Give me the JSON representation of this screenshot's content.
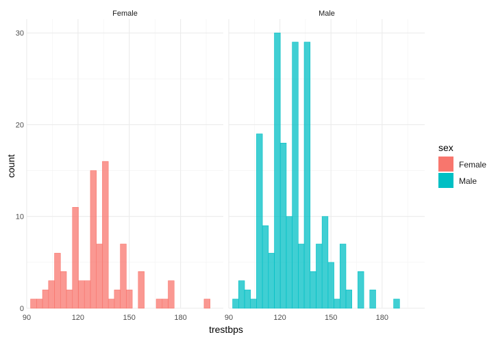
{
  "chart_data": {
    "type": "bar",
    "subtype": "faceted-histogram",
    "title": "",
    "xlabel": "trestbps",
    "ylabel": "count",
    "xlim": [
      90,
      205
    ],
    "ylim": [
      0,
      31.5
    ],
    "x_ticks": [
      90,
      120,
      150,
      180
    ],
    "y_ticks": [
      0,
      10,
      20,
      30
    ],
    "bin_width": 3.5,
    "grid": true,
    "theme": "minimal",
    "legend": {
      "title": "sex",
      "placement": "right",
      "entries": [
        {
          "label": "Female",
          "color": "#F8766D"
        },
        {
          "label": "Male",
          "color": "#00BFC4"
        }
      ]
    },
    "facets": [
      {
        "label": "Female",
        "color": "#F8766D",
        "bins": [
          {
            "x": 94,
            "count": 1
          },
          {
            "x": 97.5,
            "count": 1
          },
          {
            "x": 101,
            "count": 2
          },
          {
            "x": 104.5,
            "count": 3
          },
          {
            "x": 108,
            "count": 6
          },
          {
            "x": 111.5,
            "count": 4
          },
          {
            "x": 115,
            "count": 2
          },
          {
            "x": 118.5,
            "count": 11
          },
          {
            "x": 122,
            "count": 3
          },
          {
            "x": 125.5,
            "count": 3
          },
          {
            "x": 129,
            "count": 15
          },
          {
            "x": 132.5,
            "count": 7
          },
          {
            "x": 136,
            "count": 16
          },
          {
            "x": 139.5,
            "count": 1
          },
          {
            "x": 143,
            "count": 2
          },
          {
            "x": 146.5,
            "count": 7
          },
          {
            "x": 150,
            "count": 2
          },
          {
            "x": 153.5,
            "count": 0
          },
          {
            "x": 157,
            "count": 4
          },
          {
            "x": 160.5,
            "count": 0
          },
          {
            "x": 164,
            "count": 0
          },
          {
            "x": 167.5,
            "count": 1
          },
          {
            "x": 171,
            "count": 1
          },
          {
            "x": 174.5,
            "count": 3
          },
          {
            "x": 178,
            "count": 0
          },
          {
            "x": 181.5,
            "count": 0
          },
          {
            "x": 185,
            "count": 0
          },
          {
            "x": 188.5,
            "count": 0
          },
          {
            "x": 192,
            "count": 0
          },
          {
            "x": 195.5,
            "count": 1
          }
        ]
      },
      {
        "label": "Male",
        "color": "#00BFC4",
        "bins": [
          {
            "x": 94,
            "count": 1
          },
          {
            "x": 97.5,
            "count": 3
          },
          {
            "x": 101,
            "count": 2
          },
          {
            "x": 104.5,
            "count": 1
          },
          {
            "x": 108,
            "count": 19
          },
          {
            "x": 111.5,
            "count": 9
          },
          {
            "x": 115,
            "count": 6
          },
          {
            "x": 118.5,
            "count": 30
          },
          {
            "x": 122,
            "count": 18
          },
          {
            "x": 125.5,
            "count": 10
          },
          {
            "x": 129,
            "count": 29
          },
          {
            "x": 132.5,
            "count": 7
          },
          {
            "x": 136,
            "count": 29
          },
          {
            "x": 139.5,
            "count": 4
          },
          {
            "x": 143,
            "count": 7
          },
          {
            "x": 146.5,
            "count": 10
          },
          {
            "x": 150,
            "count": 5
          },
          {
            "x": 153.5,
            "count": 1
          },
          {
            "x": 157,
            "count": 7
          },
          {
            "x": 160.5,
            "count": 2
          },
          {
            "x": 164,
            "count": 0
          },
          {
            "x": 167.5,
            "count": 4
          },
          {
            "x": 171,
            "count": 0
          },
          {
            "x": 174.5,
            "count": 2
          },
          {
            "x": 178,
            "count": 0
          },
          {
            "x": 181.5,
            "count": 0
          },
          {
            "x": 185,
            "count": 0
          },
          {
            "x": 188.5,
            "count": 1
          },
          {
            "x": 192,
            "count": 0
          },
          {
            "x": 195.5,
            "count": 0
          }
        ]
      }
    ]
  }
}
